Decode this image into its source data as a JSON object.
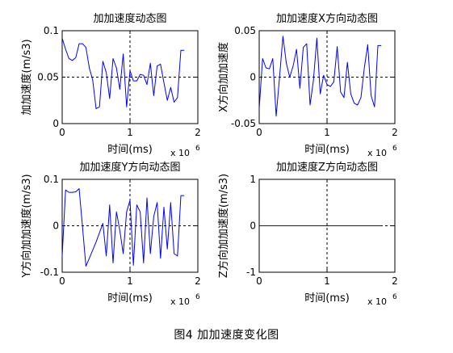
{
  "caption": "图4 加加速度变化图",
  "colors": {
    "line": "#0000ff",
    "axis": "#000000",
    "crosshair": "#000000",
    "background": "#ffffff"
  },
  "chart_data": [
    {
      "type": "line",
      "title": "加加速度动态图",
      "xlabel": "时间(ms)",
      "ylabel": "加加速度(m/s3)",
      "x_exponent_label": "x 10",
      "x_exponent": "6",
      "xlim": [
        0,
        2
      ],
      "ylim": [
        0,
        0.1
      ],
      "xticks": [
        "0",
        "1",
        "2"
      ],
      "yticks": [
        "0",
        "0.05",
        "0.1"
      ],
      "crosshair": {
        "x": 1,
        "y": 0.05
      },
      "series": [
        {
          "x": [
            0,
            0.05,
            0.1,
            0.15,
            0.2,
            0.25,
            0.3,
            0.35,
            0.4,
            0.45,
            0.5,
            0.55,
            0.6,
            0.65,
            0.7,
            0.75,
            0.8,
            0.85,
            0.9,
            0.95,
            1.0,
            1.05,
            1.1,
            1.15,
            1.2,
            1.25,
            1.3,
            1.35,
            1.4,
            1.45,
            1.5,
            1.55,
            1.6,
            1.65,
            1.7,
            1.75,
            1.8
          ],
          "values": [
            0.092,
            0.08,
            0.07,
            0.068,
            0.071,
            0.086,
            0.086,
            0.082,
            0.06,
            0.047,
            0.016,
            0.018,
            0.067,
            0.055,
            0.027,
            0.07,
            0.06,
            0.037,
            0.075,
            0.018,
            0.057,
            0.046,
            0.046,
            0.053,
            0.052,
            0.042,
            0.065,
            0.03,
            0.062,
            0.064,
            0.044,
            0.025,
            0.039,
            0.023,
            0.028,
            0.079,
            0.079
          ]
        }
      ]
    },
    {
      "type": "line",
      "title": "加加速度X方向动态图",
      "xlabel": "时间(ms)",
      "ylabel": "X方向加加速度",
      "x_exponent_label": "x 10",
      "x_exponent": "6",
      "xlim": [
        0,
        2
      ],
      "ylim": [
        -0.05,
        0.05
      ],
      "xticks": [
        "0",
        "1",
        "2"
      ],
      "yticks": [
        "-0.05",
        "0",
        "0.05"
      ],
      "crosshair": {
        "x": 1,
        "y": 0
      },
      "series": [
        {
          "x": [
            0,
            0.05,
            0.1,
            0.15,
            0.2,
            0.25,
            0.3,
            0.35,
            0.4,
            0.45,
            0.5,
            0.55,
            0.6,
            0.65,
            0.7,
            0.75,
            0.8,
            0.85,
            0.9,
            0.95,
            1.0,
            1.05,
            1.1,
            1.15,
            1.2,
            1.25,
            1.3,
            1.35,
            1.4,
            1.45,
            1.5,
            1.55,
            1.6,
            1.65,
            1.7,
            1.75,
            1.8
          ],
          "values": [
            -0.034,
            0.02,
            0.01,
            0.009,
            0.02,
            -0.042,
            0.0,
            0.044,
            0.015,
            -0.0,
            0.012,
            0.03,
            -0.012,
            0.032,
            0.036,
            -0.03,
            -0.003,
            0.042,
            -0.018,
            0.002,
            -0.008,
            -0.01,
            -0.005,
            0.033,
            -0.016,
            -0.022,
            0.016,
            -0.018,
            -0.028,
            -0.03,
            -0.022,
            0.01,
            0.035,
            -0.02,
            -0.032,
            0.034,
            0.034
          ]
        }
      ]
    },
    {
      "type": "line",
      "title": "加加速度Y方向动态图",
      "xlabel": "时间(ms)",
      "ylabel": "Y方向加加速度(m/s3)",
      "x_exponent_label": "x 10",
      "x_exponent": "6",
      "xlim": [
        0,
        2
      ],
      "ylim": [
        -0.1,
        0.1
      ],
      "xticks": [
        "0",
        "1",
        "2"
      ],
      "yticks": [
        "-0.1",
        "0",
        "0.1"
      ],
      "crosshair": {
        "x": 1,
        "y": 0
      },
      "series": [
        {
          "x": [
            0,
            0.05,
            0.1,
            0.15,
            0.2,
            0.25,
            0.3,
            0.35,
            0.4,
            0.5,
            0.6,
            0.65,
            0.7,
            0.75,
            0.8,
            0.85,
            0.9,
            0.95,
            1.0,
            1.05,
            1.1,
            1.15,
            1.2,
            1.25,
            1.3,
            1.35,
            1.4,
            1.45,
            1.5,
            1.55,
            1.6,
            1.65,
            1.7,
            1.75,
            1.8
          ],
          "values": [
            -0.065,
            0.077,
            0.072,
            0.072,
            0.073,
            0.08,
            -0.003,
            -0.087,
            -0.07,
            -0.035,
            0.005,
            -0.065,
            0.045,
            -0.08,
            0.03,
            -0.01,
            -0.06,
            0.03,
            0.055,
            -0.085,
            0.045,
            0.03,
            -0.08,
            0.06,
            -0.06,
            0.02,
            0.05,
            -0.07,
            0.04,
            -0.05,
            0.05,
            -0.06,
            -0.065,
            0.065,
            0.065
          ]
        }
      ]
    },
    {
      "type": "line",
      "title": "加加速度Z方向动态图",
      "xlabel": "时间(ms)",
      "ylabel": "Z方向加加速度(m/s3)",
      "x_exponent_label": "x 10",
      "x_exponent": "6",
      "xlim": [
        0,
        2
      ],
      "ylim": [
        -1,
        1
      ],
      "xticks": [
        "0",
        "1",
        "2"
      ],
      "yticks": [
        "-1",
        "0",
        "1"
      ],
      "crosshair": {
        "x": 1,
        "y": 0
      },
      "series": [
        {
          "x": [
            0,
            1.8
          ],
          "values": [
            0,
            0
          ]
        }
      ]
    }
  ]
}
